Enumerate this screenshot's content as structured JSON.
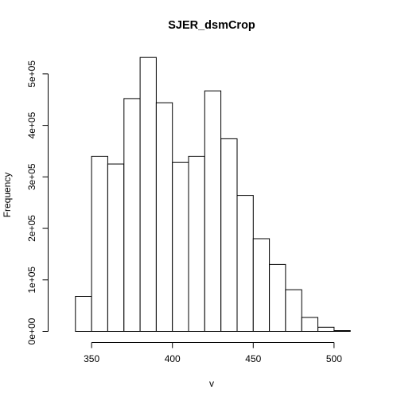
{
  "chart_data": {
    "type": "bar",
    "title": "SJER_dsmCrop",
    "xlabel": "v",
    "ylabel": "Frequency",
    "bin_edges": [
      330,
      340,
      350,
      360,
      370,
      380,
      390,
      400,
      410,
      420,
      430,
      440,
      450,
      460,
      470,
      480,
      490,
      500,
      510,
      520
    ],
    "values": [
      0,
      68000,
      340000,
      325000,
      452000,
      532000,
      444000,
      328000,
      340000,
      467000,
      374000,
      264000,
      180000,
      130000,
      81000,
      27000,
      8000,
      1500,
      0
    ],
    "xlim": [
      330,
      520
    ],
    "ylim": [
      0,
      550000
    ],
    "x_ticks": [
      {
        "value": 350,
        "label": "350"
      },
      {
        "value": 400,
        "label": "400"
      },
      {
        "value": 450,
        "label": "450"
      },
      {
        "value": 500,
        "label": "500"
      }
    ],
    "y_ticks": [
      {
        "value": 0,
        "label": "0e+00"
      },
      {
        "value": 100000,
        "label": "1e+05"
      },
      {
        "value": 200000,
        "label": "2e+05"
      },
      {
        "value": 300000,
        "label": "3e+05"
      },
      {
        "value": 400000,
        "label": "4e+05"
      },
      {
        "value": 500000,
        "label": "5e+05"
      }
    ],
    "grid": false,
    "legend": "none"
  }
}
